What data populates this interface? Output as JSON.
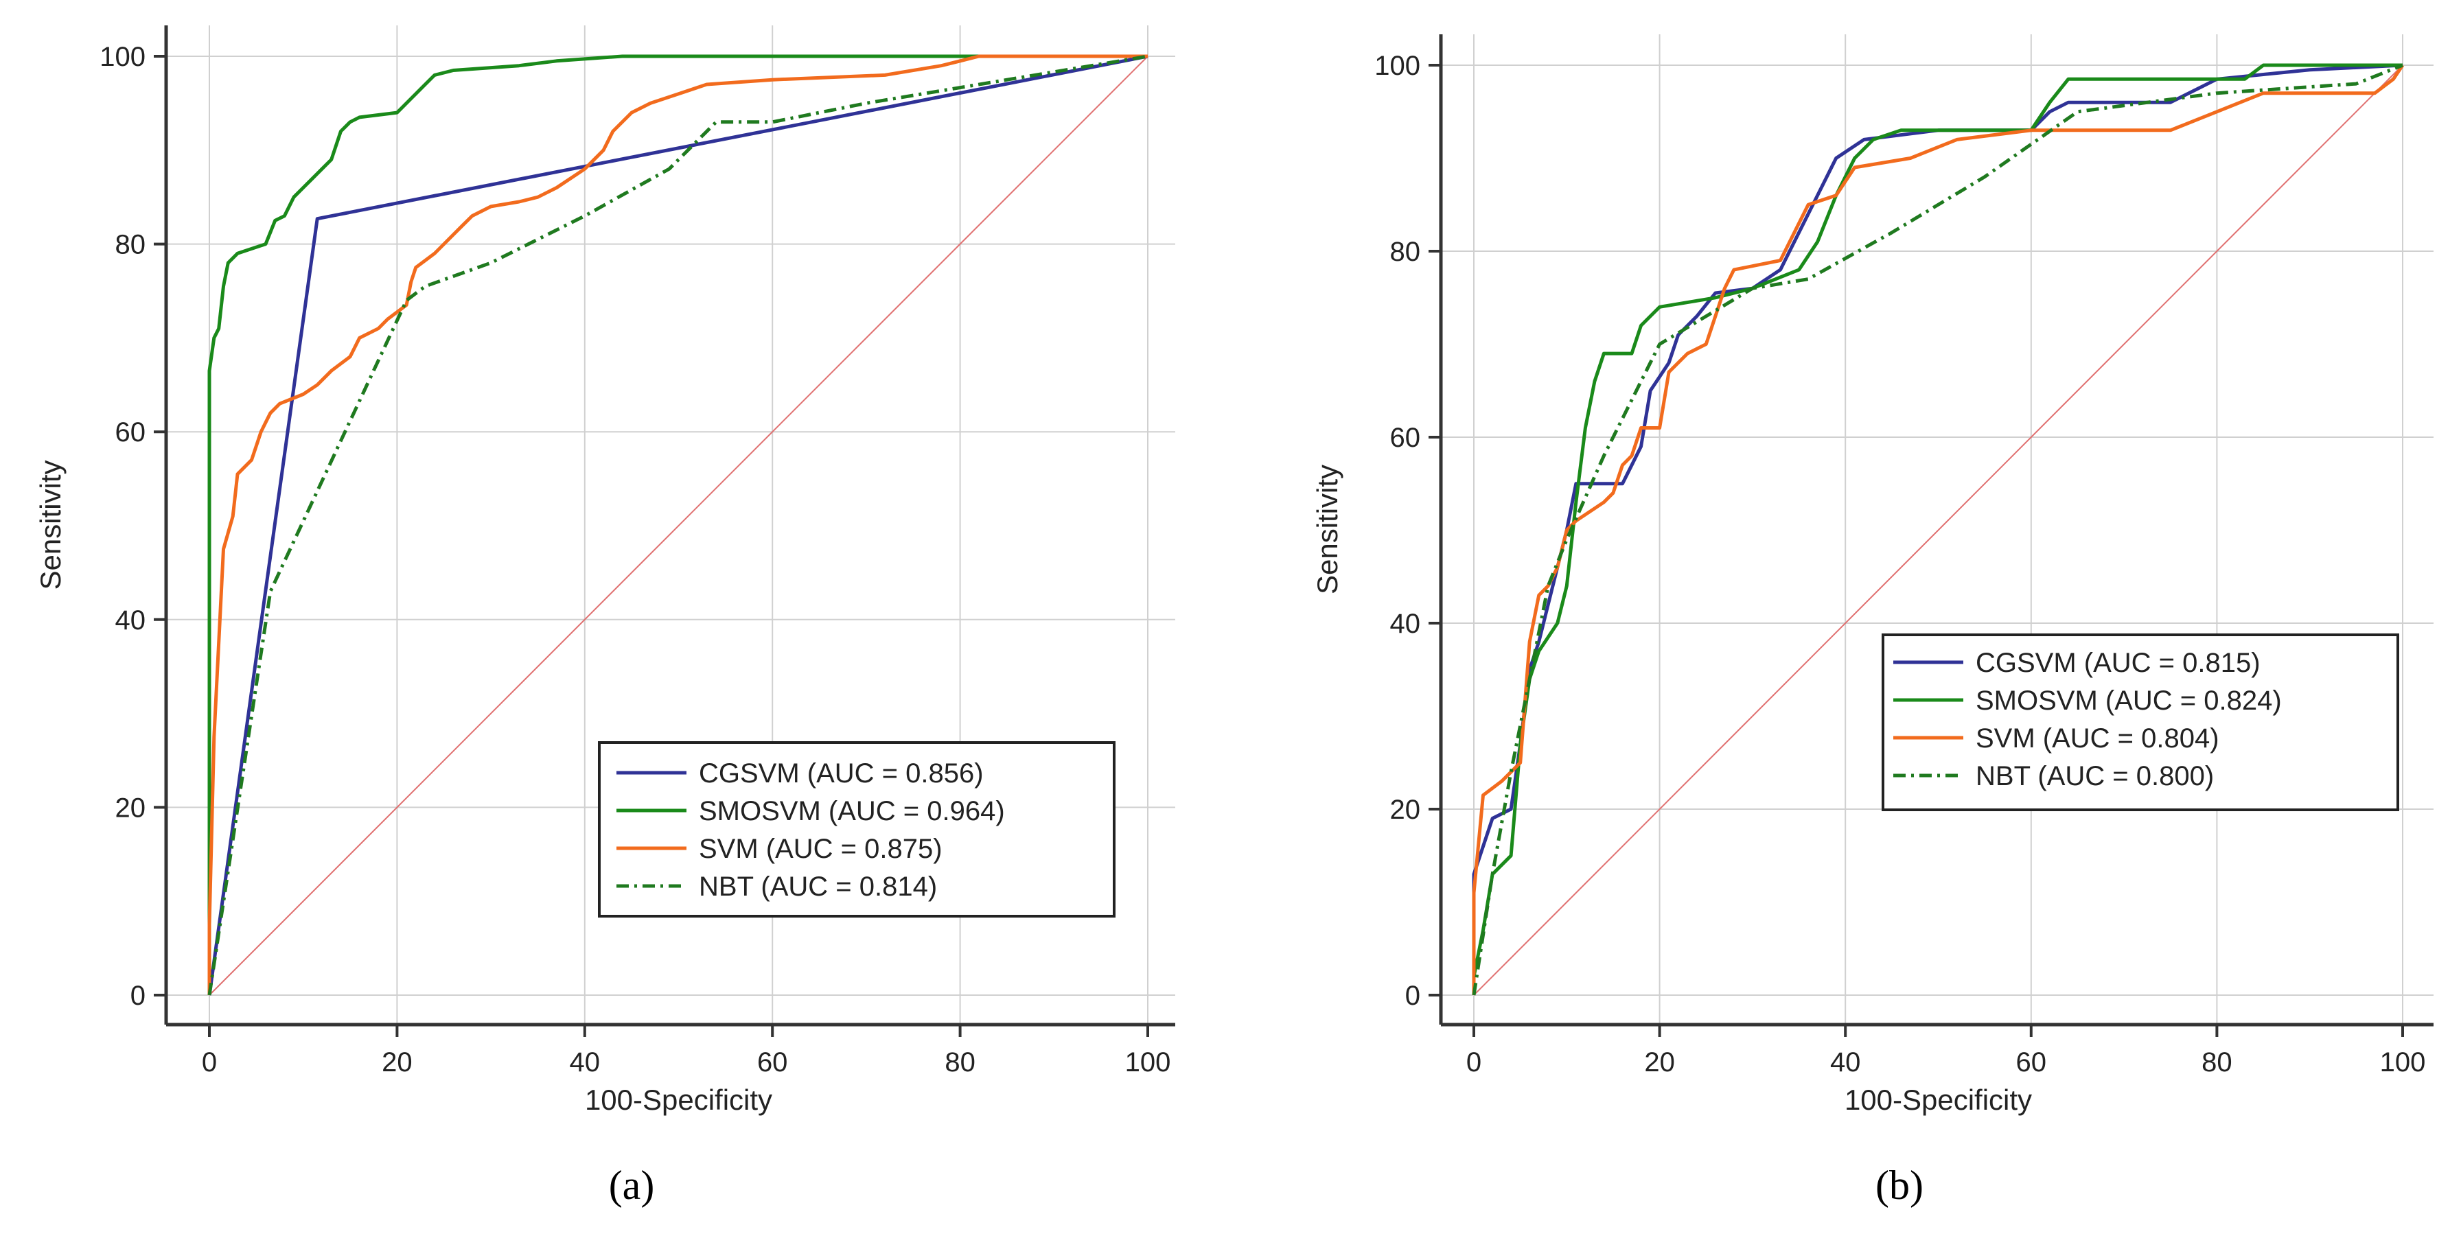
{
  "colors": {
    "cgsvm": "#2f3296",
    "smosvm": "#1a8a1a",
    "svm": "#f26b1d",
    "nbt": "#1f7a1f",
    "diagonal": "#e07070",
    "grid": "#d0d0d0",
    "axis": "#333333"
  },
  "chart_data": [
    {
      "type": "line",
      "panel_label": "(a)",
      "xlabel": "100-Specificity",
      "ylabel": "Sensitivity",
      "xlim": [
        0,
        100
      ],
      "ylim": [
        0,
        100
      ],
      "xticks": [
        0,
        20,
        40,
        60,
        80,
        100
      ],
      "yticks": [
        0,
        20,
        40,
        60,
        80,
        100
      ],
      "grid": true,
      "legend_position": "bottom-right",
      "reference_line": {
        "x": [
          0,
          100
        ],
        "y": [
          0,
          100
        ]
      },
      "series": [
        {
          "name": "CGSVM (AUC = 0.856)",
          "style": "solid",
          "color_key": "cgsvm",
          "points": [
            [
              0,
              0
            ],
            [
              11.5,
              82.7
            ],
            [
              100,
              100
            ]
          ]
        },
        {
          "name": "SMOSVM (AUC = 0.964)",
          "style": "solid",
          "color_key": "smosvm",
          "points": [
            [
              0,
              0
            ],
            [
              0,
              66.5
            ],
            [
              0.5,
              70
            ],
            [
              1,
              71
            ],
            [
              1.5,
              75.5
            ],
            [
              2,
              78
            ],
            [
              3,
              79
            ],
            [
              6,
              80
            ],
            [
              7,
              82.5
            ],
            [
              8,
              83
            ],
            [
              9,
              85
            ],
            [
              10,
              86
            ],
            [
              11,
              87
            ],
            [
              12,
              88
            ],
            [
              13,
              89
            ],
            [
              14,
              92
            ],
            [
              15,
              93
            ],
            [
              16,
              93.5
            ],
            [
              20,
              94
            ],
            [
              21,
              95
            ],
            [
              22,
              96
            ],
            [
              23,
              97
            ],
            [
              24,
              98
            ],
            [
              26,
              98.5
            ],
            [
              33,
              99
            ],
            [
              37,
              99.5
            ],
            [
              44,
              100
            ],
            [
              100,
              100
            ]
          ]
        },
        {
          "name": "SVM (AUC = 0.875)",
          "style": "solid",
          "color_key": "svm",
          "points": [
            [
              0,
              0
            ],
            [
              0,
              7.5
            ],
            [
              0.5,
              27.5
            ],
            [
              1.5,
              47.5
            ],
            [
              2.5,
              51
            ],
            [
              3,
              55.5
            ],
            [
              4.5,
              57
            ],
            [
              5.5,
              60
            ],
            [
              6,
              61
            ],
            [
              6.5,
              62
            ],
            [
              7.5,
              63
            ],
            [
              10,
              64
            ],
            [
              11.5,
              65
            ],
            [
              13,
              66.5
            ],
            [
              15,
              68
            ],
            [
              16,
              70
            ],
            [
              18,
              71
            ],
            [
              19,
              72
            ],
            [
              21,
              73.5
            ],
            [
              21.5,
              76
            ],
            [
              22,
              77.5
            ],
            [
              24,
              79
            ],
            [
              26,
              81
            ],
            [
              27,
              82
            ],
            [
              28,
              83
            ],
            [
              30,
              84
            ],
            [
              33,
              84.5
            ],
            [
              35,
              85
            ],
            [
              37,
              86
            ],
            [
              40,
              88
            ],
            [
              42,
              90
            ],
            [
              43,
              92
            ],
            [
              45,
              94
            ],
            [
              47,
              95
            ],
            [
              50,
              96
            ],
            [
              53,
              97
            ],
            [
              60,
              97.5
            ],
            [
              72,
              98
            ],
            [
              78,
              99
            ],
            [
              82,
              100
            ],
            [
              100,
              100
            ]
          ]
        },
        {
          "name": "NBT (AUC = 0.814)",
          "style": "dashdot",
          "color_key": "nbt",
          "points": [
            [
              0,
              0
            ],
            [
              6.5,
              43
            ],
            [
              21,
              74
            ],
            [
              23,
              75.5
            ],
            [
              30,
              78
            ],
            [
              40,
              83
            ],
            [
              49,
              88
            ],
            [
              54,
              93
            ],
            [
              60,
              93
            ],
            [
              70,
              95
            ],
            [
              85,
              97.5
            ],
            [
              100,
              100
            ]
          ]
        }
      ]
    },
    {
      "type": "line",
      "panel_label": "(b)",
      "xlabel": "100-Specificity",
      "ylabel": "Sensitivity",
      "xlim": [
        0,
        100
      ],
      "ylim": [
        0,
        100
      ],
      "xticks": [
        0,
        20,
        40,
        60,
        80,
        100
      ],
      "yticks": [
        0,
        20,
        40,
        60,
        80,
        100
      ],
      "grid": true,
      "legend_position": "center-right",
      "reference_line": {
        "x": [
          0,
          100
        ],
        "y": [
          0,
          100
        ]
      },
      "series": [
        {
          "name": "CGSVM (AUC = 0.815)",
          "style": "solid",
          "color_key": "cgsvm",
          "points": [
            [
              0,
              0
            ],
            [
              0,
              13
            ],
            [
              2,
              19
            ],
            [
              4,
              20
            ],
            [
              5,
              27
            ],
            [
              6,
              35
            ],
            [
              7,
              38
            ],
            [
              8,
              42
            ],
            [
              10,
              50
            ],
            [
              11,
              55
            ],
            [
              16,
              55
            ],
            [
              17,
              57
            ],
            [
              18,
              59
            ],
            [
              19,
              65
            ],
            [
              21,
              68
            ],
            [
              22,
              71
            ],
            [
              24,
              73
            ],
            [
              26,
              75.5
            ],
            [
              30,
              76
            ],
            [
              33,
              78
            ],
            [
              34,
              80
            ],
            [
              37,
              86
            ],
            [
              39,
              90
            ],
            [
              42,
              92
            ],
            [
              50,
              93
            ],
            [
              60,
              93
            ],
            [
              62,
              95
            ],
            [
              64,
              96
            ],
            [
              75,
              96
            ],
            [
              80,
              98.5
            ],
            [
              85,
              99
            ],
            [
              90,
              99.5
            ],
            [
              100,
              100
            ]
          ]
        },
        {
          "name": "SMOSVM (AUC = 0.824)",
          "style": "solid",
          "color_key": "smosvm",
          "points": [
            [
              0,
              0
            ],
            [
              0,
              2
            ],
            [
              1,
              7
            ],
            [
              2,
              13
            ],
            [
              4,
              15
            ],
            [
              5,
              27
            ],
            [
              6,
              34
            ],
            [
              7,
              37
            ],
            [
              9,
              40
            ],
            [
              10,
              44
            ],
            [
              11,
              53
            ],
            [
              12,
              61
            ],
            [
              13,
              66
            ],
            [
              14,
              69
            ],
            [
              17,
              69
            ],
            [
              18,
              72
            ],
            [
              20,
              74
            ],
            [
              26,
              75
            ],
            [
              30,
              76
            ],
            [
              35,
              78
            ],
            [
              37,
              81
            ],
            [
              39,
              86
            ],
            [
              41,
              90
            ],
            [
              43,
              92
            ],
            [
              46,
              93
            ],
            [
              54,
              93
            ],
            [
              60,
              93
            ],
            [
              62,
              96
            ],
            [
              64,
              98.5
            ],
            [
              83,
              98.5
            ],
            [
              85,
              100
            ],
            [
              100,
              100
            ]
          ]
        },
        {
          "name": "SVM (AUC = 0.804)",
          "style": "solid",
          "color_key": "svm",
          "points": [
            [
              0,
              0
            ],
            [
              0,
              11
            ],
            [
              1,
              21.5
            ],
            [
              3,
              23
            ],
            [
              5,
              25
            ],
            [
              6,
              38
            ],
            [
              7,
              43
            ],
            [
              8,
              44
            ],
            [
              9,
              46
            ],
            [
              10,
              50
            ],
            [
              11,
              51
            ],
            [
              14,
              53
            ],
            [
              15,
              54
            ],
            [
              16,
              57
            ],
            [
              17,
              58
            ],
            [
              18,
              61
            ],
            [
              20,
              61
            ],
            [
              21,
              67
            ],
            [
              23,
              69
            ],
            [
              25,
              70
            ],
            [
              26,
              73
            ],
            [
              27,
              76
            ],
            [
              28,
              78
            ],
            [
              33,
              79
            ],
            [
              36,
              85
            ],
            [
              39,
              86
            ],
            [
              41,
              89
            ],
            [
              47,
              90
            ],
            [
              52,
              92
            ],
            [
              60,
              93
            ],
            [
              75,
              93
            ],
            [
              85,
              97
            ],
            [
              90,
              97
            ],
            [
              97,
              97
            ],
            [
              99,
              98.5
            ],
            [
              100,
              100
            ]
          ]
        },
        {
          "name": "NBT (AUC = 0.800)",
          "style": "dashdot",
          "color_key": "nbt",
          "points": [
            [
              0,
              0
            ],
            [
              2,
              13
            ],
            [
              4,
              24
            ],
            [
              6,
              34
            ],
            [
              8,
              44
            ],
            [
              10,
              49
            ],
            [
              14,
              58
            ],
            [
              20,
              70
            ],
            [
              30,
              76
            ],
            [
              36,
              77
            ],
            [
              45,
              82
            ],
            [
              55,
              88
            ],
            [
              65,
              95
            ],
            [
              80,
              97
            ],
            [
              95,
              98
            ],
            [
              100,
              100
            ]
          ]
        }
      ]
    }
  ]
}
